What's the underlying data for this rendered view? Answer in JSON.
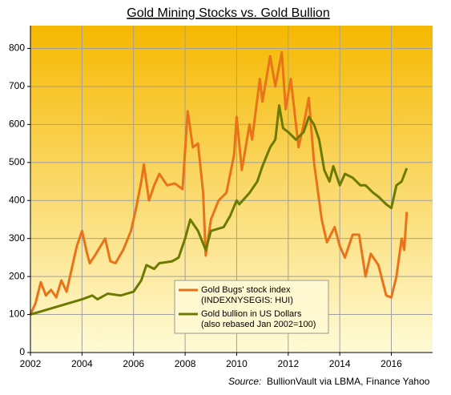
{
  "chart_data": {
    "type": "line",
    "title": "Gold Mining Stocks vs. Gold Bullion",
    "source_label": "Source:",
    "source": "BullionVault via LBMA, Finance Yahoo",
    "xlim": [
      2002,
      2017.6
    ],
    "xticks": [
      2002,
      2004,
      2006,
      2008,
      2010,
      2012,
      2014,
      2016
    ],
    "ylim": [
      0,
      860
    ],
    "yticks": [
      0,
      100,
      200,
      300,
      400,
      500,
      600,
      700,
      800
    ],
    "grid": true,
    "series": [
      {
        "name": "Gold Bugs' stock index",
        "note": "(INDEXNYSEGIS: HUI)",
        "color": "#e8731a",
        "x": [
          2002,
          2002.2,
          2002.4,
          2002.6,
          2002.8,
          2003,
          2003.2,
          2003.4,
          2003.6,
          2003.8,
          2004,
          2004.2,
          2004.3,
          2004.5,
          2004.9,
          2005.1,
          2005.3,
          2005.6,
          2005.9,
          2006.1,
          2006.3,
          2006.4,
          2006.6,
          2006.8,
          2007,
          2007.3,
          2007.6,
          2007.9,
          2008.1,
          2008.3,
          2008.5,
          2008.7,
          2008.8,
          2009,
          2009.3,
          2009.6,
          2009.9,
          2010,
          2010.2,
          2010.5,
          2010.6,
          2010.9,
          2011,
          2011.3,
          2011.5,
          2011.75,
          2011.9,
          2012.1,
          2012.4,
          2012.6,
          2012.8,
          2013,
          2013.3,
          2013.5,
          2013.8,
          2014,
          2014.2,
          2014.5,
          2014.75,
          2015,
          2015.2,
          2015.5,
          2015.8,
          2016,
          2016.2,
          2016.4,
          2016.5,
          2016.6
        ],
        "values": [
          100,
          130,
          185,
          150,
          165,
          145,
          190,
          160,
          220,
          280,
          320,
          260,
          235,
          255,
          300,
          240,
          235,
          270,
          320,
          380,
          450,
          495,
          400,
          440,
          470,
          440,
          445,
          430,
          635,
          540,
          550,
          420,
          255,
          350,
          400,
          420,
          520,
          620,
          480,
          600,
          560,
          720,
          660,
          780,
          700,
          790,
          640,
          720,
          540,
          600,
          670,
          500,
          350,
          290,
          330,
          280,
          250,
          310,
          310,
          200,
          260,
          230,
          150,
          145,
          200,
          300,
          270,
          370
        ]
      },
      {
        "name": "Gold bullion in US Dollars",
        "note": "(also rebased Jan 2002=100)",
        "color": "#6b7a00",
        "x": [
          2002,
          2002.5,
          2003,
          2003.5,
          2004,
          2004.4,
          2004.6,
          2005,
          2005.5,
          2006,
          2006.3,
          2006.5,
          2006.8,
          2007,
          2007.5,
          2007.75,
          2008,
          2008.2,
          2008.5,
          2008.8,
          2009,
          2009.5,
          2009.75,
          2010,
          2010.1,
          2010.5,
          2010.8,
          2011,
          2011.3,
          2011.5,
          2011.65,
          2011.8,
          2012,
          2012.3,
          2012.6,
          2012.8,
          2013,
          2013.2,
          2013.4,
          2013.6,
          2013.75,
          2014,
          2014.2,
          2014.5,
          2014.8,
          2015,
          2015.3,
          2015.5,
          2015.8,
          2016,
          2016.2,
          2016.4,
          2016.6
        ],
        "values": [
          100,
          110,
          120,
          130,
          140,
          150,
          140,
          155,
          150,
          160,
          190,
          230,
          220,
          235,
          240,
          250,
          300,
          350,
          320,
          270,
          320,
          330,
          360,
          400,
          390,
          420,
          450,
          490,
          540,
          560,
          650,
          590,
          580,
          560,
          580,
          620,
          600,
          560,
          480,
          450,
          490,
          440,
          470,
          460,
          440,
          440,
          420,
          410,
          390,
          380,
          440,
          450,
          485
        ]
      }
    ]
  }
}
